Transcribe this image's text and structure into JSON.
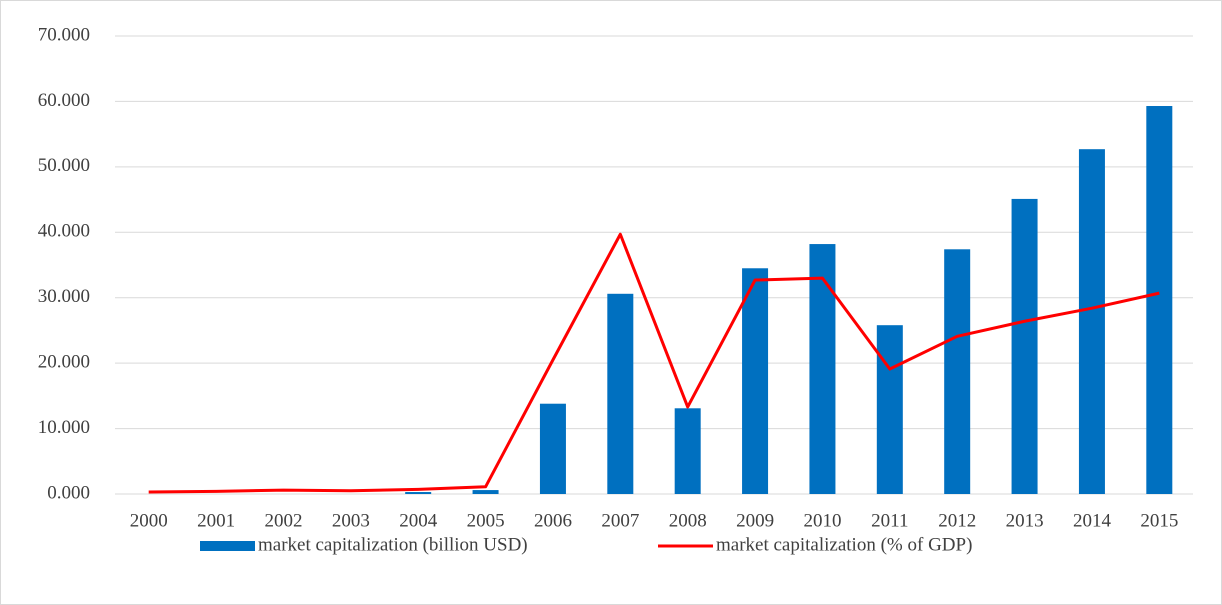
{
  "chart_data": {
    "type": "bar",
    "categories": [
      "2000",
      "2001",
      "2002",
      "2003",
      "2004",
      "2005",
      "2006",
      "2007",
      "2008",
      "2009",
      "2010",
      "2011",
      "2012",
      "2013",
      "2014",
      "2015"
    ],
    "series": [
      {
        "name": "market capitalization (billion USD)",
        "type": "bar",
        "color": "#0070c0",
        "values": [
          0,
          0,
          0,
          0,
          0.3,
          0.6,
          13.8,
          30.6,
          13.1,
          34.5,
          38.2,
          25.8,
          37.4,
          45.1,
          52.7,
          59.3
        ]
      },
      {
        "name": "market capitalization (% of GDP)",
        "type": "line",
        "color": "#ff0000",
        "values": [
          0.3,
          0.4,
          0.6,
          0.5,
          0.7,
          1.1,
          20.5,
          39.7,
          13.3,
          32.7,
          33.0,
          19.1,
          24.1,
          26.4,
          28.4,
          30.7
        ]
      }
    ],
    "ylim": [
      0,
      70
    ],
    "yticks": [
      {
        "value": 0,
        "label": "0.000"
      },
      {
        "value": 10,
        "label": "10.000"
      },
      {
        "value": 20,
        "label": "20.000"
      },
      {
        "value": 30,
        "label": "30.000"
      },
      {
        "value": 40,
        "label": "40.000"
      },
      {
        "value": 50,
        "label": "50.000"
      },
      {
        "value": 60,
        "label": "60.000"
      },
      {
        "value": 70,
        "label": "70.000"
      }
    ],
    "grid": true,
    "legend": "bottom"
  }
}
